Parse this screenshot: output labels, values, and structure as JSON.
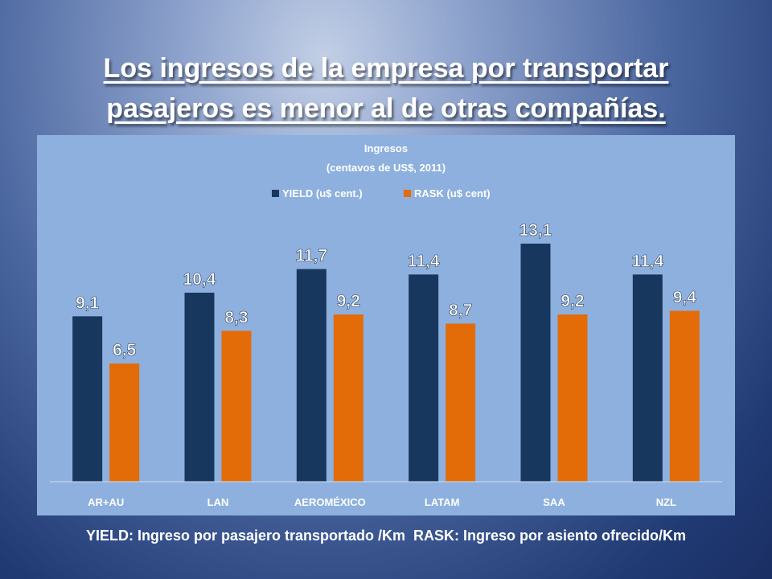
{
  "slide": {
    "title_line1": "Los ingresos de la empresa por transportar",
    "title_line2": "pasajeros es menor al de otras compañías.",
    "footnote": "YIELD: Ingreso por pasajero transportado /Km  RASK: Ingreso por asiento ofrecido/Km"
  },
  "chart_data": {
    "type": "bar",
    "title": "Ingresos",
    "subtitle": "(centavos de US$, 2011)",
    "categories": [
      "AR+AU",
      "LAN",
      "AEROMÉXICO",
      "LATAM",
      "SAA",
      "NZL"
    ],
    "series": [
      {
        "name": "YIELD (u$ cent.)",
        "values": [
          9.1,
          10.4,
          11.7,
          11.4,
          13.1,
          11.4
        ],
        "labels": [
          "9,1",
          "10,4",
          "11,7",
          "11,4",
          "13,1",
          "11,4"
        ],
        "color": "#17375e"
      },
      {
        "name": "RASK (u$ cent)",
        "values": [
          6.5,
          8.3,
          9.2,
          8.7,
          9.2,
          9.4
        ],
        "labels": [
          "6,5",
          "8,3",
          "9,2",
          "8,7",
          "9,2",
          "9,4"
        ],
        "color": "#e36c09"
      }
    ],
    "ylim": [
      0,
      14.5
    ],
    "grid": false,
    "legend": "top"
  }
}
